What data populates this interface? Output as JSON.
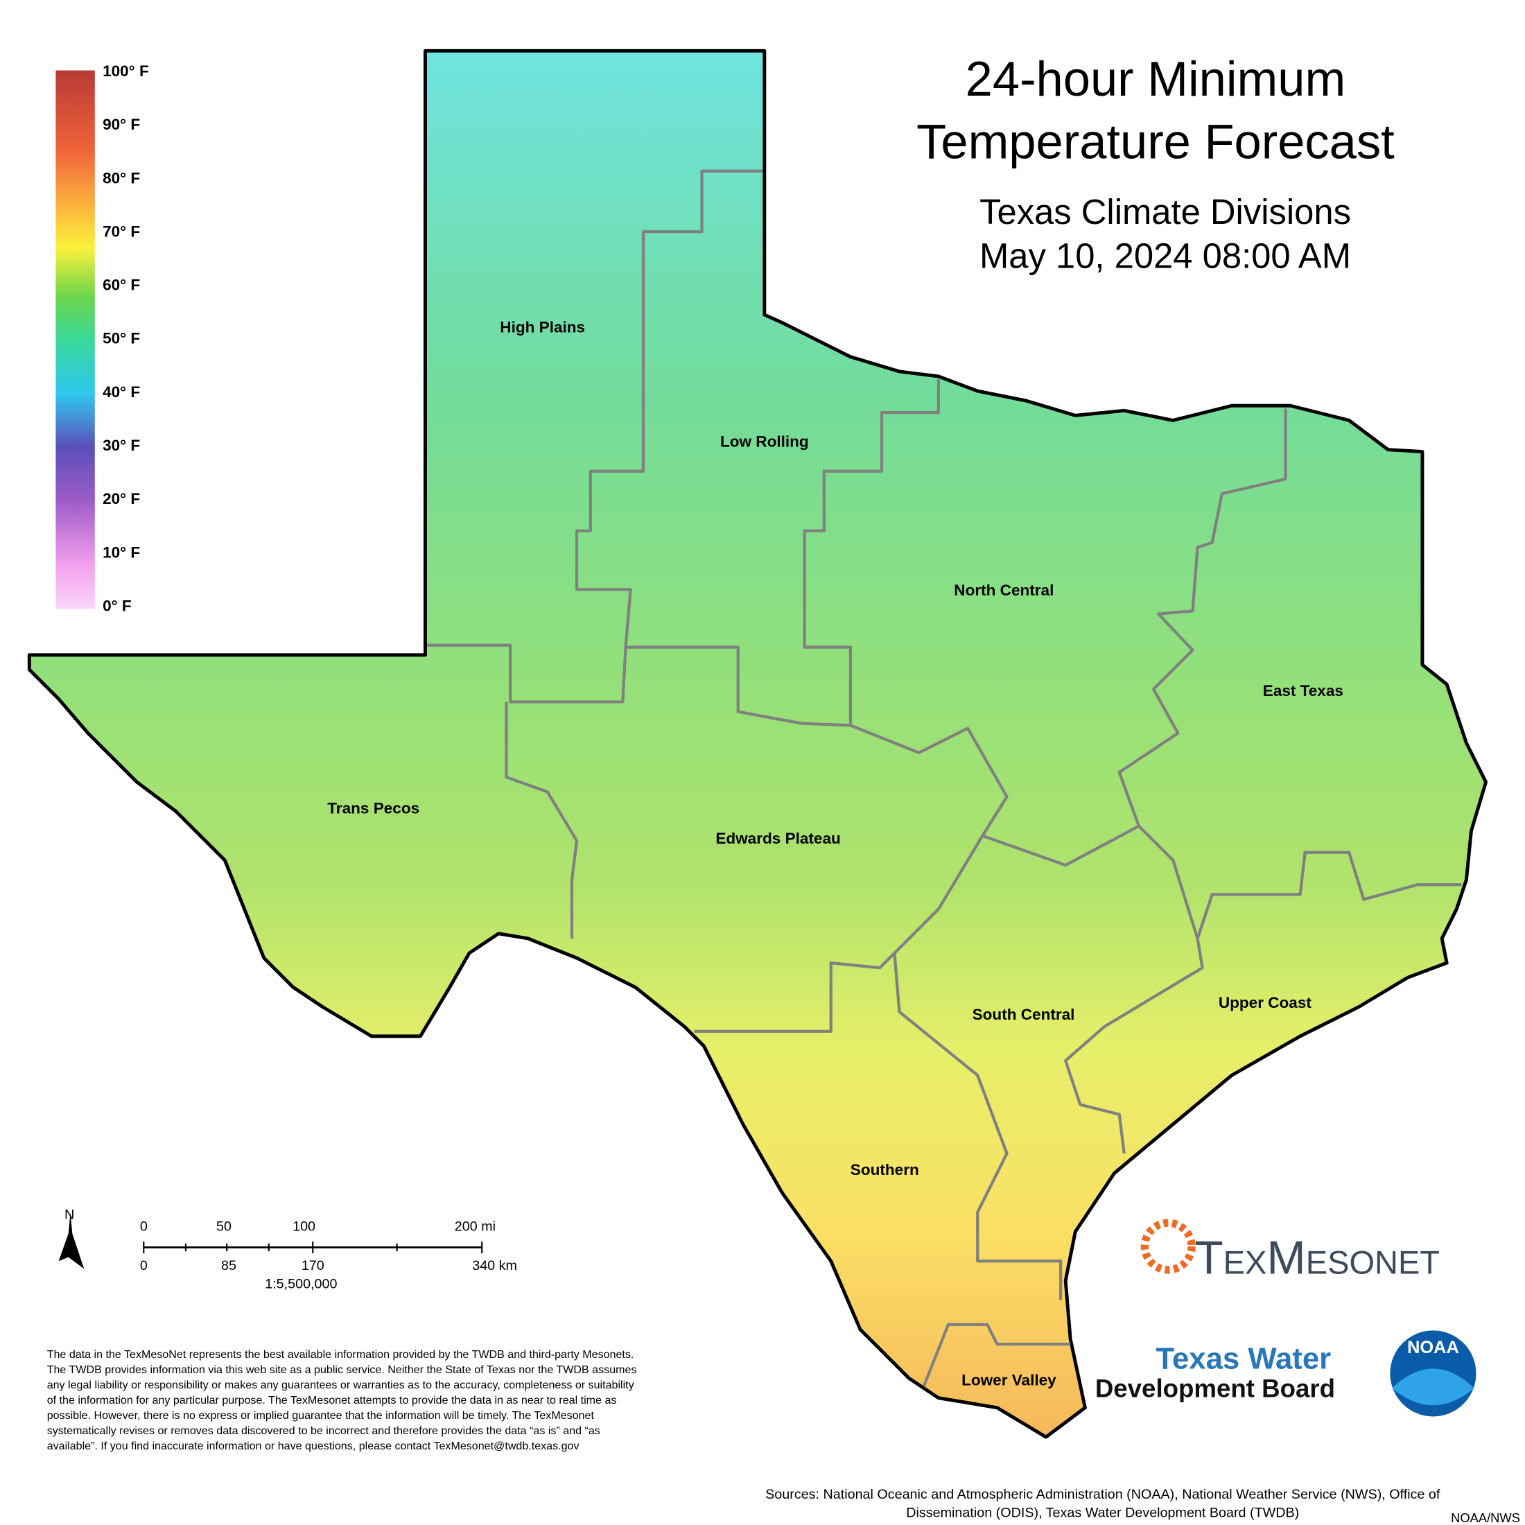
{
  "header": {
    "title_lines": [
      "24-hour Minimum",
      "Temperature Forecast"
    ],
    "subtitle": "Texas Climate Divisions",
    "date": "May 10, 2024 08:00 AM"
  },
  "legend": {
    "labels": [
      "100° F",
      "90° F",
      "80° F",
      "70° F",
      "60° F",
      "50° F",
      "40° F",
      "30° F",
      "20° F",
      "10° F",
      "0° F"
    ]
  },
  "regions": [
    "High Plains",
    "Low Rolling",
    "North Central",
    "East Texas",
    "Trans Pecos",
    "Edwards Plateau",
    "South Central",
    "Upper Coast",
    "Southern",
    "Lower Valley"
  ],
  "scale": {
    "north": "N",
    "miles": [
      "0",
      "50",
      "100",
      "200 mi"
    ],
    "km": [
      "0",
      "85",
      "170",
      "340 km"
    ],
    "ratio": "1:5,500,000"
  },
  "disclaimer": [
    "The data in the TexMesoNet represents the best available information provided by the TWDB and third-party Mesonets.",
    "The TWDB provides information via this web site as a public service. Neither the State of Texas nor the TWDB assumes",
    "any legal liability or responsibility or makes any guarantees or warranties as to the accuracy, completeness or suitability",
    "of the information for any particular purpose. The TexMesonet attempts to provide the data in as near to real time as",
    "possible. However, there is no express or implied guarantee that the information will be timely. The TexMesonet",
    "systematically revises or removes data discovered to be incorrect and therefore provides the data “as is” and “as",
    "available”. If you find inaccurate information or have questions, please contact TexMesonet@twdb.texas.gov"
  ],
  "sources": [
    "Sources: National Oceanic and Atmospheric Administration (NOAA), National Weather Service (NWS), Office of",
    "Dissemination (ODIS), Texas Water Development Board (TWDB)"
  ],
  "credit": "NOAA/NWS",
  "logos": {
    "texmesonet": "TexMesonet",
    "twdb": [
      "Texas Water",
      "Development Board"
    ],
    "noaa": "NOAA"
  }
}
